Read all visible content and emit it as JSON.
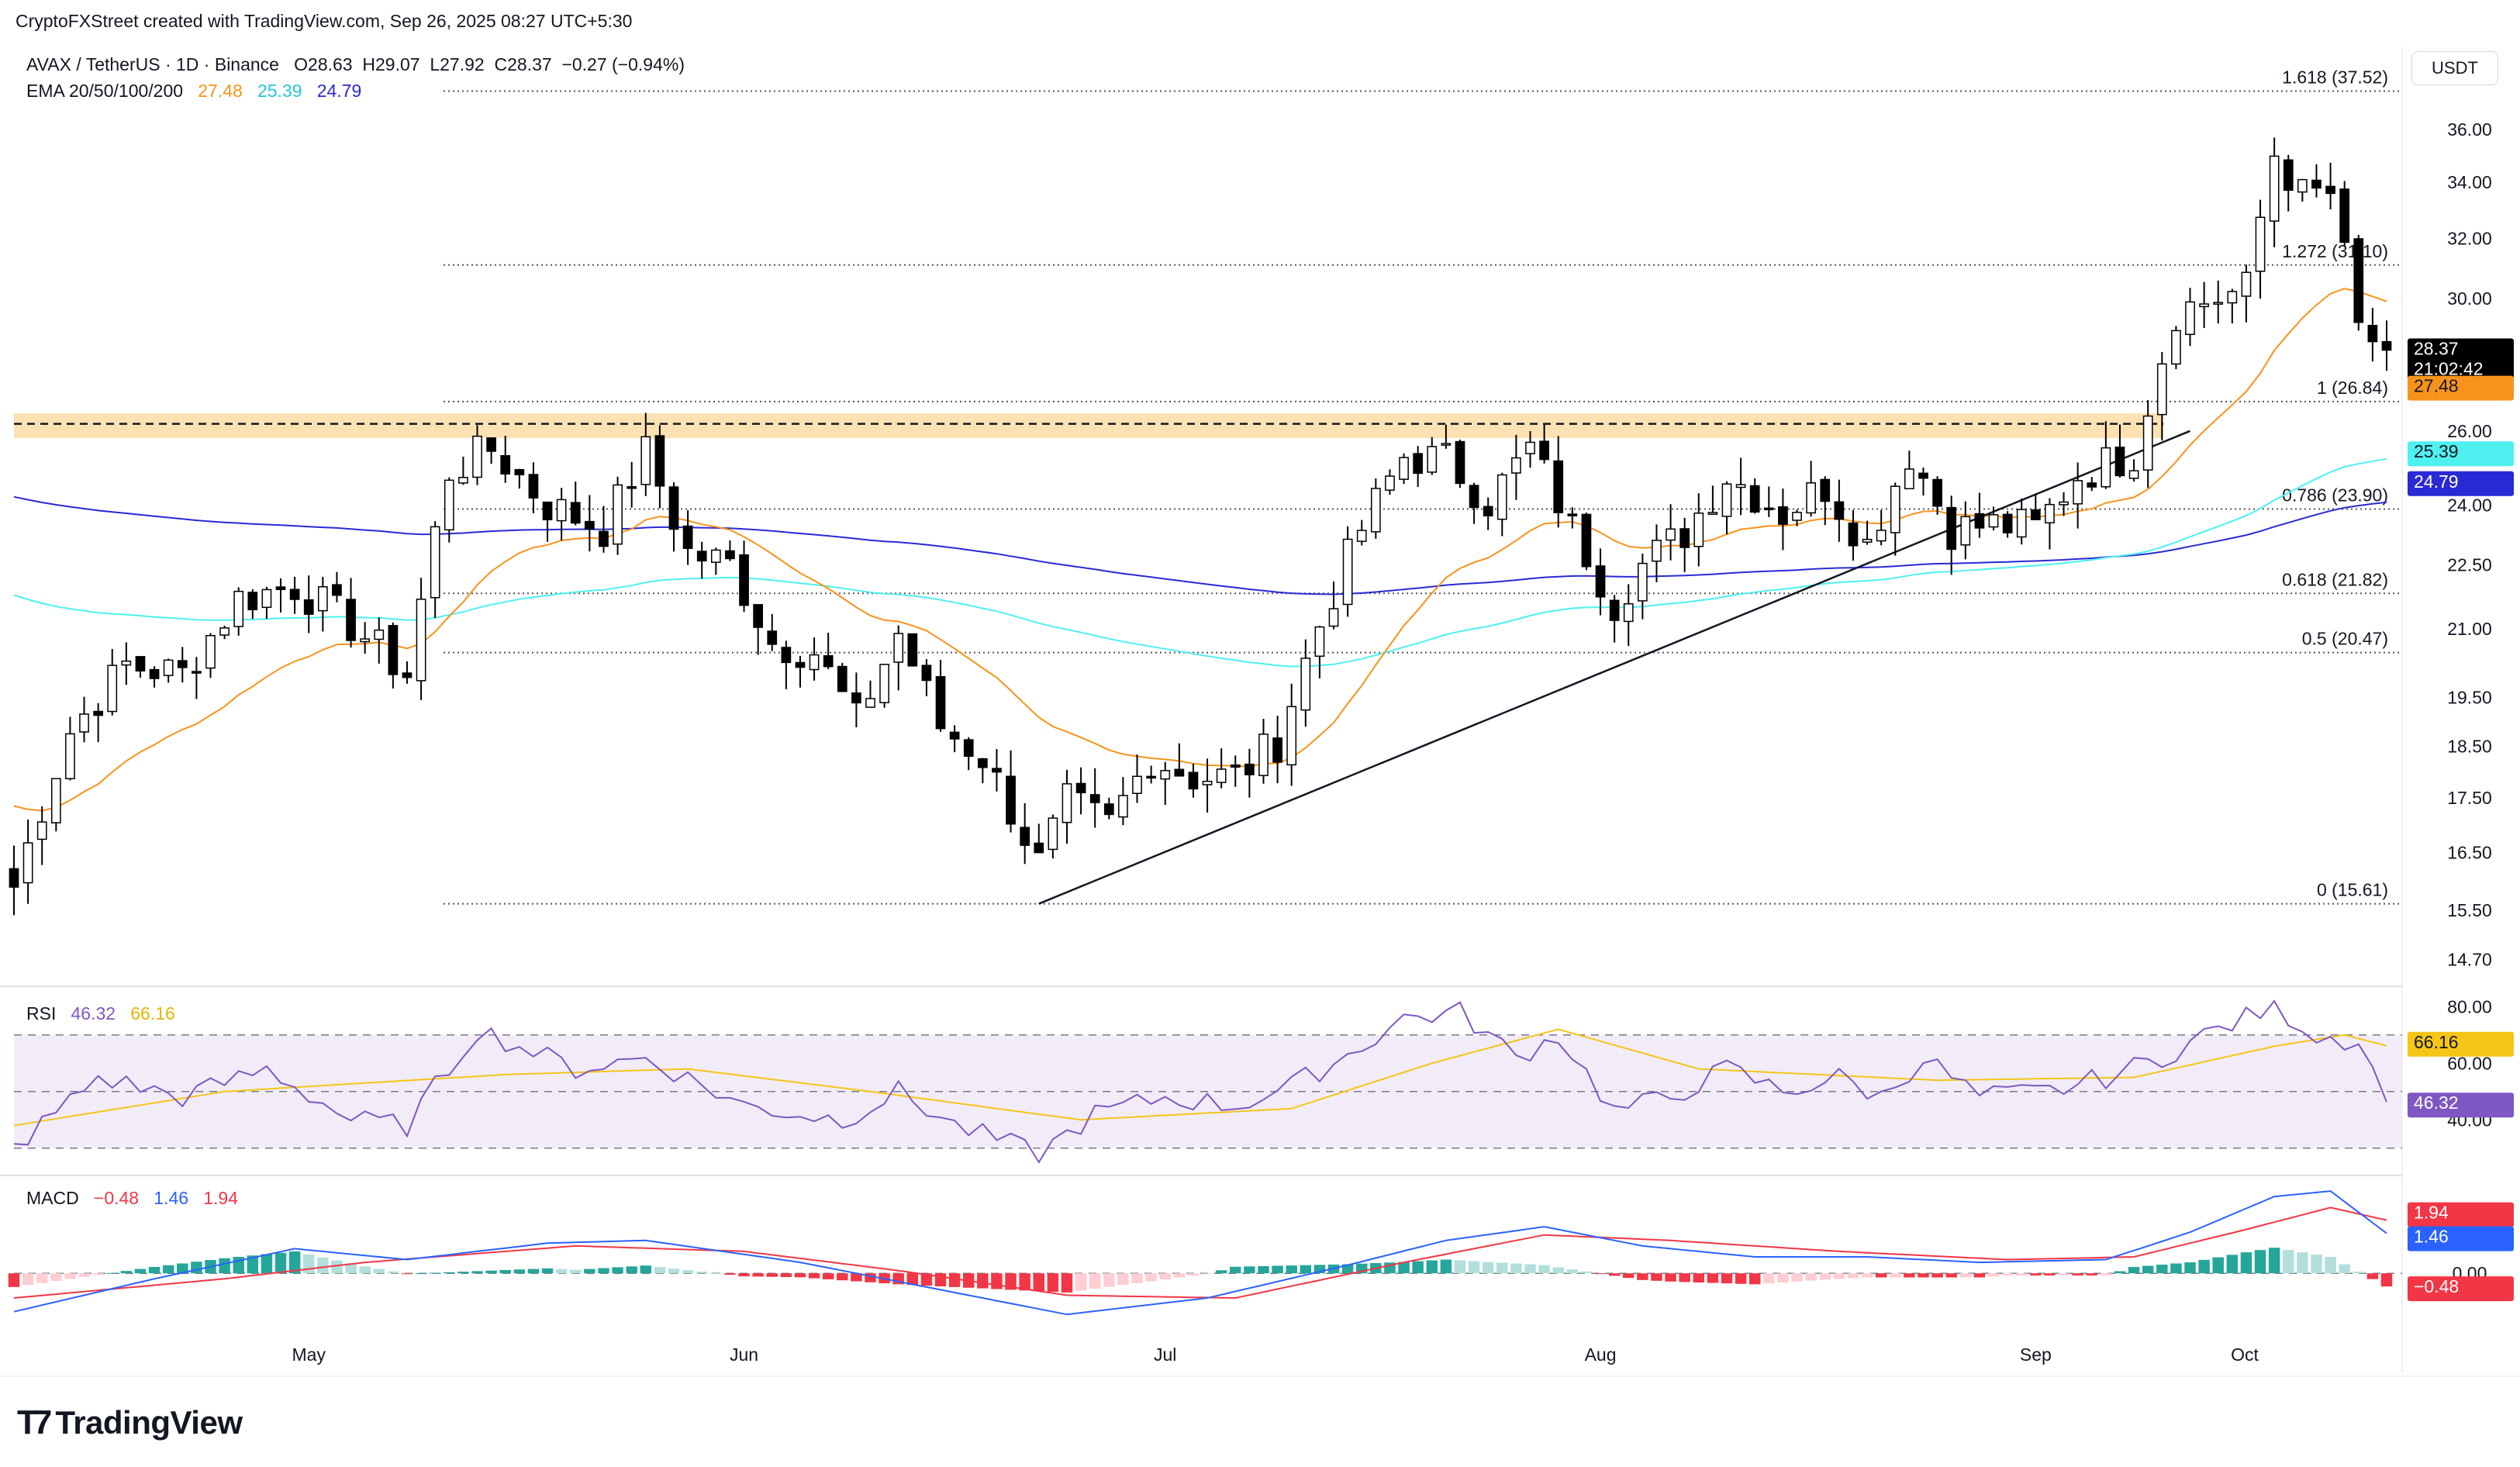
{
  "header": {
    "attribution": "CryptoFXStreet created with TradingView.com, Sep 26, 2025 08:27 UTC+5:30",
    "symbol": "AVAX / TetherUS · 1D · Binance",
    "ohlc": {
      "o": "O28.63",
      "h": "H29.07",
      "l": "L27.92",
      "c": "C28.37",
      "chg": "−0.27 (−0.94%)"
    },
    "ema_label": "EMA 20/50/100/200",
    "ema_values": [
      "27.48",
      "25.39",
      "24.79"
    ]
  },
  "currency": "USDT",
  "branding": {
    "logo_text": "TradingView"
  },
  "colors": {
    "up": "#ffffff",
    "down": "#000000",
    "ema20": "#f7931a",
    "ema100": "#4ff0f0",
    "ema200": "#2929d6",
    "rsi": "#7e57c2",
    "rsi_ma": "#f5c518",
    "macd": "#2962ff",
    "signal": "#f23645",
    "resistance_zone": "#fbd89a"
  },
  "chart_data": [
    {
      "type": "candlestick",
      "title": "AVAX / TetherUS · 1D · Binance",
      "x_labels": [
        "May",
        "Jun",
        "Jul",
        "Aug",
        "Sep",
        "Oct"
      ],
      "y_ticks": [
        "36.00",
        "34.00",
        "32.00",
        "30.00",
        "26.00",
        "24.00",
        "22.50",
        "21.00",
        "19.50",
        "18.50",
        "17.50",
        "16.50",
        "15.50",
        "14.70"
      ],
      "y_scale": "log",
      "ylim": [
        14.4,
        38.2
      ],
      "date_range": [
        "2025-04-10",
        "2025-09-26"
      ],
      "last": {
        "close": "28.37",
        "countdown": "21:02:42"
      },
      "ema_last": {
        "ema20": "27.48",
        "ema100": "25.39",
        "ema200": "24.79"
      },
      "fib_levels": [
        {
          "label": "1.618 (37.52)",
          "value": 37.52
        },
        {
          "label": "1.272 (31.10)",
          "value": 31.1
        },
        {
          "label": "1 (26.84)",
          "value": 26.84
        },
        {
          "label": "0.786 (23.90)",
          "value": 23.9
        },
        {
          "label": "0.618 (21.82)",
          "value": 21.82
        },
        {
          "label": "0.5 (20.47)",
          "value": 20.47
        },
        {
          "label": "0 (15.61)",
          "value": 15.61
        }
      ],
      "resistance_zone": [
        25.8,
        26.5
      ],
      "dashed_level": 26.2,
      "trendline": [
        {
          "date": "2025-06-22",
          "price": 15.61
        },
        {
          "date": "2025-09-12",
          "price": 26.0
        }
      ],
      "close_anchors": [
        [
          "2025-04-10",
          15.9
        ],
        [
          "2025-04-14",
          18.8
        ],
        [
          "2025-04-18",
          20.2
        ],
        [
          "2025-04-22",
          20.0
        ],
        [
          "2025-04-26",
          21.7
        ],
        [
          "2025-04-30",
          22.0
        ],
        [
          "2025-05-04",
          21.1
        ],
        [
          "2025-05-08",
          20.0
        ],
        [
          "2025-05-11",
          24.9
        ],
        [
          "2025-05-14",
          25.5
        ],
        [
          "2025-05-18",
          24.0
        ],
        [
          "2025-05-22",
          23.4
        ],
        [
          "2025-05-25",
          25.4
        ],
        [
          "2025-05-28",
          22.8
        ],
        [
          "2025-05-31",
          22.5
        ],
        [
          "2025-06-03",
          20.7
        ],
        [
          "2025-06-06",
          20.5
        ],
        [
          "2025-06-09",
          19.0
        ],
        [
          "2025-06-12",
          20.9
        ],
        [
          "2025-06-15",
          18.9
        ],
        [
          "2025-06-18",
          18.3
        ],
        [
          "2025-06-20",
          17.3
        ],
        [
          "2025-06-22",
          16.3
        ],
        [
          "2025-06-24",
          17.4
        ],
        [
          "2025-06-27",
          17.0
        ],
        [
          "2025-06-30",
          18.3
        ],
        [
          "2025-07-03",
          17.9
        ],
        [
          "2025-07-06",
          17.9
        ],
        [
          "2025-07-09",
          18.6
        ],
        [
          "2025-07-12",
          21.1
        ],
        [
          "2025-07-15",
          23.4
        ],
        [
          "2025-07-18",
          25.3
        ],
        [
          "2025-07-21",
          25.2
        ],
        [
          "2025-07-24",
          24.1
        ],
        [
          "2025-07-27",
          25.5
        ],
        [
          "2025-07-30",
          23.4
        ],
        [
          "2025-08-02",
          21.6
        ],
        [
          "2025-08-04",
          22.5
        ],
        [
          "2025-08-07",
          23.3
        ],
        [
          "2025-08-10",
          24.8
        ],
        [
          "2025-08-14",
          23.8
        ],
        [
          "2025-08-17",
          24.5
        ],
        [
          "2025-08-20",
          23.0
        ],
        [
          "2025-08-23",
          25.4
        ],
        [
          "2025-08-26",
          23.4
        ],
        [
          "2025-08-29",
          23.5
        ],
        [
          "2025-09-01",
          23.4
        ],
        [
          "2025-09-04",
          24.8
        ],
        [
          "2025-09-08",
          25.4
        ],
        [
          "2025-09-11",
          29.6
        ],
        [
          "2025-09-13",
          29.9
        ],
        [
          "2025-09-16",
          30.3
        ],
        [
          "2025-09-18",
          35.1
        ],
        [
          "2025-09-20",
          33.5
        ],
        [
          "2025-09-22",
          33.6
        ],
        [
          "2025-09-24",
          29.0
        ],
        [
          "2025-09-26",
          28.37
        ]
      ]
    },
    {
      "type": "line",
      "title": "RSI",
      "values_label": [
        "46.32",
        "66.16"
      ],
      "series": [
        {
          "name": "RSI",
          "last": 46.32
        },
        {
          "name": "RSI MA",
          "last": 66.16
        }
      ],
      "levels": [
        70,
        50,
        30
      ],
      "y_ticks": [
        "80.00",
        "60.00",
        "40.00"
      ],
      "ylim": [
        22,
        85
      ],
      "rsi_anchors": [
        [
          "2025-04-10",
          30
        ],
        [
          "2025-04-16",
          55
        ],
        [
          "2025-04-22",
          48
        ],
        [
          "2025-04-28",
          58
        ],
        [
          "2025-05-04",
          40
        ],
        [
          "2025-05-08",
          38
        ],
        [
          "2025-05-13",
          72
        ],
        [
          "2025-05-20",
          58
        ],
        [
          "2025-05-25",
          62
        ],
        [
          "2025-06-01",
          45
        ],
        [
          "2025-06-08",
          40
        ],
        [
          "2025-06-12",
          50
        ],
        [
          "2025-06-16",
          38
        ],
        [
          "2025-06-22",
          28
        ],
        [
          "2025-06-26",
          42
        ],
        [
          "2025-07-01",
          48
        ],
        [
          "2025-07-06",
          45
        ],
        [
          "2025-07-10",
          52
        ],
        [
          "2025-07-14",
          63
        ],
        [
          "2025-07-18",
          76
        ],
        [
          "2025-07-22",
          78
        ],
        [
          "2025-07-26",
          62
        ],
        [
          "2025-07-29",
          70
        ],
        [
          "2025-08-02",
          43
        ],
        [
          "2025-08-06",
          48
        ],
        [
          "2025-08-10",
          58
        ],
        [
          "2025-08-14",
          50
        ],
        [
          "2025-08-18",
          55
        ],
        [
          "2025-08-21",
          48
        ],
        [
          "2025-08-24",
          62
        ],
        [
          "2025-08-28",
          48
        ],
        [
          "2025-09-02",
          50
        ],
        [
          "2025-09-06",
          55
        ],
        [
          "2025-09-10",
          62
        ],
        [
          "2025-09-13",
          70
        ],
        [
          "2025-09-18",
          80
        ],
        [
          "2025-09-21",
          70
        ],
        [
          "2025-09-24",
          68
        ],
        [
          "2025-09-26",
          46.32
        ]
      ],
      "ma_anchors": [
        [
          "2025-04-10",
          38
        ],
        [
          "2025-04-25",
          50
        ],
        [
          "2025-05-15",
          56
        ],
        [
          "2025-05-28",
          58
        ],
        [
          "2025-06-10",
          50
        ],
        [
          "2025-06-25",
          40
        ],
        [
          "2025-07-10",
          44
        ],
        [
          "2025-07-20",
          60
        ],
        [
          "2025-07-29",
          72
        ],
        [
          "2025-08-08",
          58
        ],
        [
          "2025-08-25",
          54
        ],
        [
          "2025-09-08",
          55
        ],
        [
          "2025-09-18",
          66
        ],
        [
          "2025-09-23",
          70
        ],
        [
          "2025-09-26",
          66.16
        ]
      ]
    },
    {
      "type": "line",
      "title": "MACD",
      "values_label": [
        "−0.48",
        "1.46",
        "1.94"
      ],
      "series": [
        {
          "name": "MACD",
          "last": 1.46
        },
        {
          "name": "Signal",
          "last": 1.94
        },
        {
          "name": "Histogram",
          "last": -0.48
        }
      ],
      "y_ticks": [
        "0.00"
      ],
      "ylim": [
        -2.2,
        3.4
      ],
      "macd_anchors": [
        [
          "2025-04-10",
          -1.4
        ],
        [
          "2025-04-20",
          -0.2
        ],
        [
          "2025-04-30",
          0.9
        ],
        [
          "2025-05-08",
          0.5
        ],
        [
          "2025-05-18",
          1.1
        ],
        [
          "2025-05-25",
          1.2
        ],
        [
          "2025-06-05",
          0.4
        ],
        [
          "2025-06-15",
          -0.6
        ],
        [
          "2025-06-24",
          -1.5
        ],
        [
          "2025-07-04",
          -0.9
        ],
        [
          "2025-07-14",
          0.3
        ],
        [
          "2025-07-21",
          1.2
        ],
        [
          "2025-07-28",
          1.7
        ],
        [
          "2025-08-04",
          1.0
        ],
        [
          "2025-08-12",
          0.6
        ],
        [
          "2025-08-20",
          0.6
        ],
        [
          "2025-08-28",
          0.4
        ],
        [
          "2025-09-06",
          0.5
        ],
        [
          "2025-09-12",
          1.5
        ],
        [
          "2025-09-18",
          2.8
        ],
        [
          "2025-09-22",
          3.0
        ],
        [
          "2025-09-26",
          1.46
        ]
      ],
      "signal_anchors": [
        [
          "2025-04-10",
          -0.9
        ],
        [
          "2025-04-25",
          -0.2
        ],
        [
          "2025-05-05",
          0.4
        ],
        [
          "2025-05-20",
          1.0
        ],
        [
          "2025-06-01",
          0.8
        ],
        [
          "2025-06-12",
          0.1
        ],
        [
          "2025-06-24",
          -0.8
        ],
        [
          "2025-07-06",
          -0.9
        ],
        [
          "2025-07-18",
          0.4
        ],
        [
          "2025-07-28",
          1.4
        ],
        [
          "2025-08-06",
          1.2
        ],
        [
          "2025-08-18",
          0.8
        ],
        [
          "2025-08-30",
          0.5
        ],
        [
          "2025-09-08",
          0.6
        ],
        [
          "2025-09-16",
          1.6
        ],
        [
          "2025-09-22",
          2.4
        ],
        [
          "2025-09-26",
          1.94
        ]
      ]
    }
  ]
}
